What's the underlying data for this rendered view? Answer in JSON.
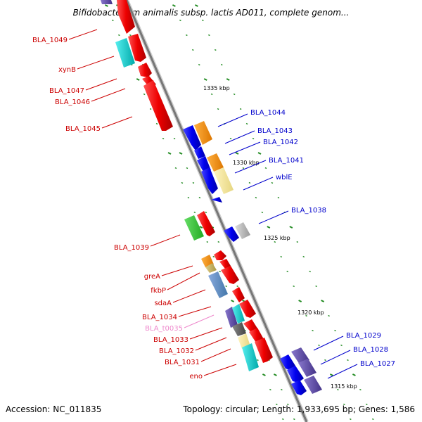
{
  "title": "Bifidobacterium animalis subsp. lactis AD011, complete genom...",
  "footer": {
    "accession": "Accession: NC_011835",
    "topology": "Topology: circular; Length: 1,933,695 bp; Genes: 1,586"
  },
  "colors": {
    "backbone": "#888888",
    "tick": "#228b22",
    "left_label": "#cc0000",
    "right_label": "#0000cc",
    "trna_label": "#ee88cc"
  },
  "scale_labels": [
    "1335 kbp",
    "1330 kbp",
    "1325 kbp",
    "1320 kbp",
    "1315 kbp"
  ],
  "left_labels": [
    "BLA_1049",
    "xynB",
    "BLA_1047",
    "BLA_1046",
    "BLA_1045",
    "BLA_1039",
    "greA",
    "fkbP",
    "sdaA",
    "BLA_1034",
    "BLA_t0035",
    "BLA_1033",
    "BLA_1032",
    "BLA_1031",
    "eno"
  ],
  "right_labels": [
    "BLA_1044",
    "BLA_1043",
    "BLA_1042",
    "BLA_1041",
    "wblE",
    "BLA_1038",
    "BLA_1029",
    "BLA_1028",
    "BLA_1027"
  ]
}
